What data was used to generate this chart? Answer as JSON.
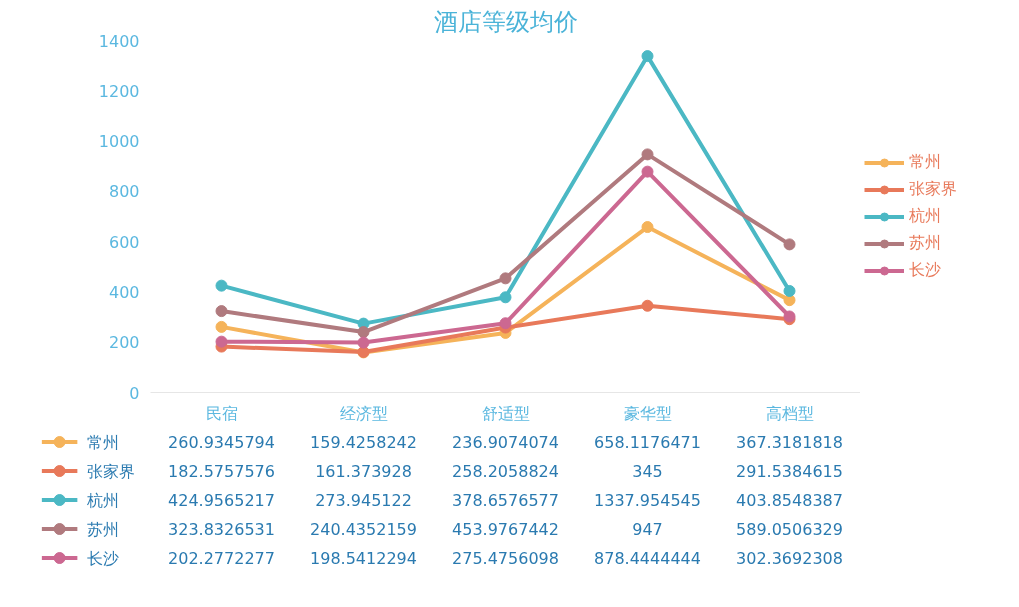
{
  "chart_data": {
    "type": "line",
    "title": "酒店等级均价",
    "categories": [
      "民宿",
      "经济型",
      "舒适型",
      "豪华型",
      "高档型"
    ],
    "series": [
      {
        "name": "常州",
        "color": "#f5b35a",
        "values": [
          260.9345794,
          159.4258242,
          236.9074074,
          658.1176471,
          367.3181818
        ]
      },
      {
        "name": "张家界",
        "color": "#e8795a",
        "values": [
          182.5757576,
          161.373928,
          258.2058824,
          345,
          291.5384615
        ]
      },
      {
        "name": "杭州",
        "color": "#4bb8c4",
        "values": [
          424.9565217,
          273.945122,
          378.6576577,
          1337.954545,
          403.8548387
        ]
      },
      {
        "name": "苏州",
        "color": "#b07a7e",
        "values": [
          323.8326531,
          240.4352159,
          453.9767442,
          947,
          589.0506329
        ]
      },
      {
        "name": "长沙",
        "color": "#cc6891",
        "values": [
          202.2772277,
          198.5412294,
          275.4756098,
          878.4444444,
          302.3692308
        ]
      }
    ],
    "ylim": [
      0,
      1400
    ],
    "yticks": [
      0,
      200,
      400,
      600,
      800,
      1000,
      1200,
      1400
    ],
    "marker": "circle",
    "legend": "right",
    "data_labels": true
  }
}
